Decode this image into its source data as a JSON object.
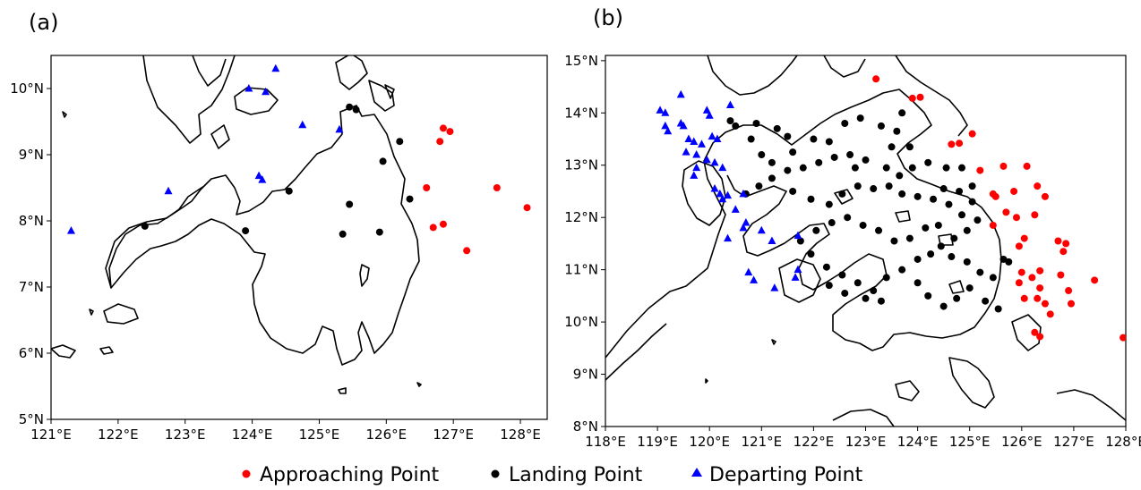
{
  "colors": {
    "approaching": "#ff0000",
    "landing": "#000000",
    "departing": "#0000ff"
  },
  "panels": [
    {
      "label": "(a)",
      "x_ticks": [
        "121°E",
        "122°E",
        "123°E",
        "124°E",
        "125°E",
        "126°E",
        "127°E",
        "128°E"
      ],
      "y_ticks": [
        "5°N",
        "6°N",
        "7°N",
        "8°N",
        "9°N",
        "10°N"
      ]
    },
    {
      "label": "(b)",
      "x_ticks": [
        "118°E",
        "119°E",
        "120°E",
        "121°E",
        "122°E",
        "123°E",
        "124°E",
        "125°E",
        "126°E",
        "127°E",
        "128°E"
      ],
      "y_ticks": [
        "8°N",
        "9°N",
        "10°N",
        "11°N",
        "12°N",
        "13°N",
        "14°N",
        "15°N"
      ]
    }
  ],
  "legend": {
    "approaching": "Approaching Point",
    "landing": "Landing Point",
    "departing": "Departing Point"
  },
  "chart_data": [
    {
      "type": "scatter",
      "xlim": [
        121.0,
        128.4
      ],
      "ylim": [
        5.0,
        10.5
      ],
      "series": [
        {
          "name": "Approaching Point",
          "marker": "circle",
          "points": [
            [
              126.6,
              8.5
            ],
            [
              126.8,
              9.2
            ],
            [
              126.85,
              9.4
            ],
            [
              126.95,
              9.35
            ],
            [
              127.65,
              8.5
            ],
            [
              128.1,
              8.2
            ],
            [
              126.7,
              7.9
            ],
            [
              126.85,
              7.95
            ],
            [
              127.2,
              7.55
            ]
          ]
        },
        {
          "name": "Landing Point",
          "marker": "circle",
          "points": [
            [
              125.45,
              9.72
            ],
            [
              125.55,
              9.68
            ],
            [
              126.2,
              9.2
            ],
            [
              125.95,
              8.9
            ],
            [
              126.35,
              8.33
            ],
            [
              124.55,
              8.45
            ],
            [
              125.45,
              8.25
            ],
            [
              125.35,
              7.8
            ],
            [
              125.9,
              7.83
            ],
            [
              123.9,
              7.85
            ],
            [
              122.4,
              7.92
            ]
          ]
        },
        {
          "name": "Departing Point",
          "marker": "triangle",
          "points": [
            [
              124.35,
              10.3
            ],
            [
              123.95,
              10.0
            ],
            [
              124.2,
              9.95
            ],
            [
              124.75,
              9.45
            ],
            [
              125.3,
              9.38
            ],
            [
              124.1,
              8.68
            ],
            [
              124.15,
              8.62
            ],
            [
              122.75,
              8.45
            ],
            [
              121.3,
              7.85
            ]
          ]
        }
      ]
    },
    {
      "type": "scatter",
      "xlim": [
        118.0,
        128.0
      ],
      "ylim": [
        8.0,
        15.1
      ],
      "series": [
        {
          "name": "Approaching Point",
          "marker": "circle",
          "points": [
            [
              123.2,
              14.65
            ],
            [
              123.9,
              14.28
            ],
            [
              124.05,
              14.3
            ],
            [
              124.65,
              13.4
            ],
            [
              124.8,
              13.42
            ],
            [
              125.05,
              13.6
            ],
            [
              125.2,
              12.9
            ],
            [
              125.65,
              12.98
            ],
            [
              126.1,
              12.98
            ],
            [
              125.45,
              12.45
            ],
            [
              125.5,
              12.4
            ],
            [
              125.85,
              12.5
            ],
            [
              126.3,
              12.6
            ],
            [
              126.45,
              12.4
            ],
            [
              125.7,
              12.1
            ],
            [
              126.25,
              12.05
            ],
            [
              125.9,
              12.0
            ],
            [
              125.45,
              11.85
            ],
            [
              126.05,
              11.6
            ],
            [
              126.7,
              11.55
            ],
            [
              126.85,
              11.5
            ],
            [
              125.95,
              11.45
            ],
            [
              126.8,
              11.35
            ],
            [
              126.0,
              10.95
            ],
            [
              126.35,
              10.98
            ],
            [
              126.75,
              10.9
            ],
            [
              127.4,
              10.8
            ],
            [
              125.95,
              10.75
            ],
            [
              126.2,
              10.85
            ],
            [
              126.35,
              10.65
            ],
            [
              126.9,
              10.6
            ],
            [
              126.05,
              10.45
            ],
            [
              126.3,
              10.45
            ],
            [
              126.45,
              10.35
            ],
            [
              126.95,
              10.35
            ],
            [
              126.55,
              10.15
            ],
            [
              126.25,
              9.8
            ],
            [
              126.35,
              9.72
            ],
            [
              127.95,
              9.7
            ]
          ]
        },
        {
          "name": "Landing Point",
          "marker": "circle",
          "points": [
            [
              120.4,
              13.85
            ],
            [
              120.5,
              13.75
            ],
            [
              120.9,
              13.8
            ],
            [
              121.3,
              13.7
            ],
            [
              121.5,
              13.55
            ],
            [
              122.0,
              13.5
            ],
            [
              122.3,
              13.45
            ],
            [
              122.6,
              13.8
            ],
            [
              122.9,
              13.9
            ],
            [
              123.3,
              13.75
            ],
            [
              123.6,
              13.65
            ],
            [
              123.7,
              14.0
            ],
            [
              123.5,
              13.35
            ],
            [
              123.85,
              13.35
            ],
            [
              123.0,
              13.1
            ],
            [
              122.7,
              13.2
            ],
            [
              122.4,
              13.15
            ],
            [
              122.1,
              13.05
            ],
            [
              121.8,
              12.95
            ],
            [
              121.5,
              12.9
            ],
            [
              121.2,
              12.75
            ],
            [
              120.95,
              12.6
            ],
            [
              120.7,
              12.45
            ],
            [
              121.6,
              12.5
            ],
            [
              121.95,
              12.35
            ],
            [
              122.3,
              12.25
            ],
            [
              122.55,
              12.45
            ],
            [
              122.85,
              12.6
            ],
            [
              123.15,
              12.55
            ],
            [
              123.45,
              12.6
            ],
            [
              123.7,
              12.45
            ],
            [
              124.0,
              12.4
            ],
            [
              124.3,
              12.35
            ],
            [
              124.5,
              12.55
            ],
            [
              124.8,
              12.5
            ],
            [
              125.05,
              12.3
            ],
            [
              125.15,
              11.95
            ],
            [
              124.95,
              11.75
            ],
            [
              124.7,
              11.6
            ],
            [
              124.45,
              11.45
            ],
            [
              124.25,
              11.3
            ],
            [
              124.0,
              11.2
            ],
            [
              123.7,
              11.0
            ],
            [
              123.4,
              10.85
            ],
            [
              123.15,
              10.6
            ],
            [
              122.85,
              10.75
            ],
            [
              122.55,
              10.9
            ],
            [
              122.25,
              11.05
            ],
            [
              121.95,
              11.3
            ],
            [
              121.75,
              11.55
            ],
            [
              122.05,
              11.75
            ],
            [
              122.35,
              11.9
            ],
            [
              122.65,
              12.0
            ],
            [
              122.95,
              11.85
            ],
            [
              123.25,
              11.75
            ],
            [
              123.55,
              11.55
            ],
            [
              123.85,
              11.6
            ],
            [
              124.15,
              11.8
            ],
            [
              124.4,
              11.85
            ],
            [
              124.65,
              11.25
            ],
            [
              124.95,
              11.15
            ],
            [
              125.2,
              10.95
            ],
            [
              125.0,
              10.65
            ],
            [
              124.75,
              10.45
            ],
            [
              124.5,
              10.3
            ],
            [
              124.2,
              10.5
            ],
            [
              124.0,
              10.75
            ],
            [
              125.3,
              10.4
            ],
            [
              125.55,
              10.25
            ],
            [
              125.45,
              10.85
            ],
            [
              125.65,
              11.2
            ],
            [
              125.75,
              11.15
            ],
            [
              123.0,
              10.45
            ],
            [
              123.3,
              10.4
            ],
            [
              122.6,
              10.55
            ],
            [
              122.3,
              10.7
            ],
            [
              121.0,
              13.2
            ],
            [
              121.2,
              13.05
            ],
            [
              120.8,
              13.5
            ],
            [
              121.6,
              13.25
            ],
            [
              123.9,
              12.95
            ],
            [
              124.2,
              13.05
            ],
            [
              123.4,
              12.95
            ],
            [
              123.65,
              12.8
            ],
            [
              122.8,
              12.95
            ],
            [
              124.55,
              12.95
            ],
            [
              124.85,
              12.95
            ],
            [
              124.6,
              12.25
            ],
            [
              124.85,
              12.05
            ],
            [
              125.05,
              12.6
            ]
          ]
        },
        {
          "name": "Departing Point",
          "marker": "triangle",
          "points": [
            [
              119.45,
              14.35
            ],
            [
              119.05,
              14.05
            ],
            [
              119.15,
              14.0
            ],
            [
              119.45,
              13.8
            ],
            [
              119.5,
              13.75
            ],
            [
              119.15,
              13.75
            ],
            [
              119.2,
              13.65
            ],
            [
              119.6,
              13.5
            ],
            [
              119.7,
              13.45
            ],
            [
              119.85,
              13.4
            ],
            [
              119.95,
              14.05
            ],
            [
              120.0,
              13.95
            ],
            [
              120.05,
              13.55
            ],
            [
              120.15,
              13.5
            ],
            [
              119.55,
              13.25
            ],
            [
              119.75,
              13.2
            ],
            [
              119.95,
              13.1
            ],
            [
              120.1,
              13.05
            ],
            [
              119.75,
              12.95
            ],
            [
              119.7,
              12.8
            ],
            [
              120.1,
              12.55
            ],
            [
              120.2,
              12.45
            ],
            [
              120.35,
              12.42
            ],
            [
              120.65,
              12.45
            ],
            [
              120.25,
              12.35
            ],
            [
              120.5,
              12.15
            ],
            [
              120.7,
              11.9
            ],
            [
              120.65,
              11.8
            ],
            [
              120.35,
              11.6
            ],
            [
              121.0,
              11.75
            ],
            [
              121.2,
              11.55
            ],
            [
              121.7,
              11.65
            ],
            [
              120.75,
              10.95
            ],
            [
              120.85,
              10.8
            ],
            [
              121.25,
              10.65
            ],
            [
              121.65,
              10.85
            ],
            [
              121.7,
              11.0
            ],
            [
              120.4,
              14.15
            ],
            [
              120.25,
              12.95
            ]
          ]
        }
      ]
    }
  ]
}
